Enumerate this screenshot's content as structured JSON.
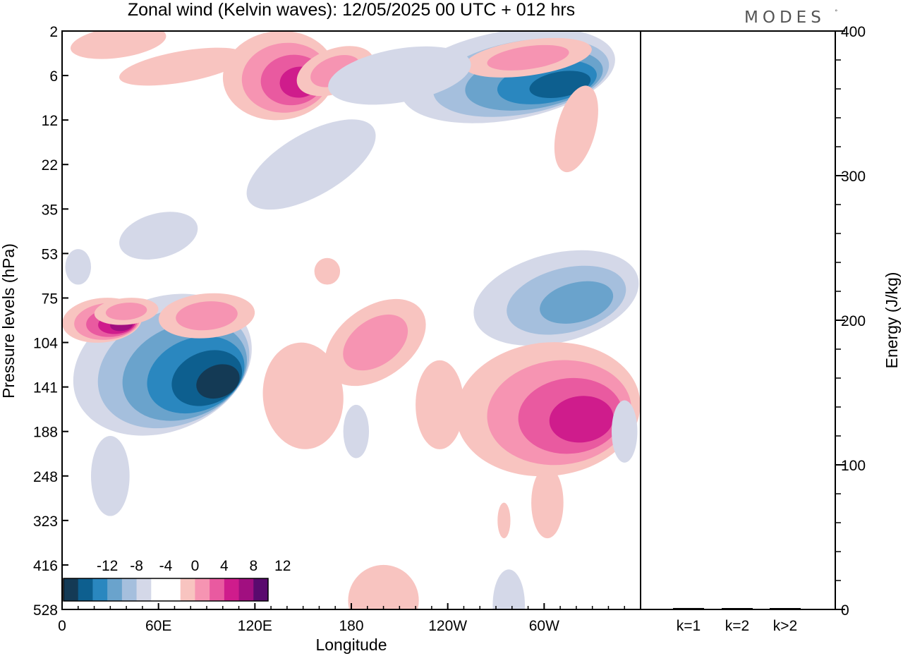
{
  "chart_data": [
    {
      "type": "heatmap",
      "title": "Zonal wind (Kelvin waves):  12/05/2025  00 UTC  + 012 hrs",
      "xlabel": "Longitude",
      "ylabel": "Pressure levels (hPa)",
      "x_tick_labels": [
        "0",
        "60E",
        "120E",
        "180",
        "120W",
        "60W"
      ],
      "x_ticks_deg": [
        0,
        60,
        120,
        180,
        240,
        300
      ],
      "xlim": [
        0,
        360
      ],
      "y_tick_labels": [
        "2",
        "6",
        "12",
        "22",
        "35",
        "53",
        "75",
        "104",
        "141",
        "188",
        "248",
        "323",
        "416",
        "528"
      ],
      "colorbar": {
        "labels": [
          "-12",
          "-8",
          "-4",
          "0",
          "4",
          "8",
          "12"
        ],
        "colors": [
          "#143a55",
          "#0d5f8f",
          "#2a87bf",
          "#6aa3cc",
          "#a5bfdd",
          "#d4d8e8",
          "#ffffff",
          "#ffffff",
          "#f8c4c0",
          "#f694b2",
          "#e95aa0",
          "#cf1c8c",
          "#a10f80",
          "#5a0a6e"
        ]
      },
      "features": [
        {
          "sign": "negative",
          "lon": [
            5,
            120
          ],
          "level_range": [
            "75",
            "188"
          ],
          "min_value": -12
        },
        {
          "sign": "positive",
          "lon": [
            0,
            50
          ],
          "level_range": [
            "75",
            "104"
          ],
          "max_value": 10
        },
        {
          "sign": "negative",
          "lon": [
            255,
            360
          ],
          "level_range": [
            "53",
            "104"
          ],
          "min_value": -6
        },
        {
          "sign": "positive",
          "lon": [
            245,
            360
          ],
          "level_range": [
            "104",
            "248"
          ],
          "max_value": 8
        },
        {
          "sign": "negative",
          "lon": [
            210,
            345
          ],
          "level_range": [
            "2",
            "12"
          ],
          "min_value": -10
        },
        {
          "sign": "positive",
          "lon": [
            100,
            170
          ],
          "level_range": [
            "2",
            "12"
          ],
          "max_value": 8
        }
      ]
    },
    {
      "type": "bar",
      "categories": [
        "k=1",
        "k=2",
        "k>2"
      ],
      "values": [
        1,
        0.5,
        0.5
      ],
      "ylabel": "Energy (J/kg)",
      "ylim": [
        0,
        400
      ],
      "y_tick_labels": [
        "0",
        "100",
        "200",
        "300",
        "400"
      ]
    }
  ],
  "logo_text": "MODES",
  "logo_mark": "°"
}
